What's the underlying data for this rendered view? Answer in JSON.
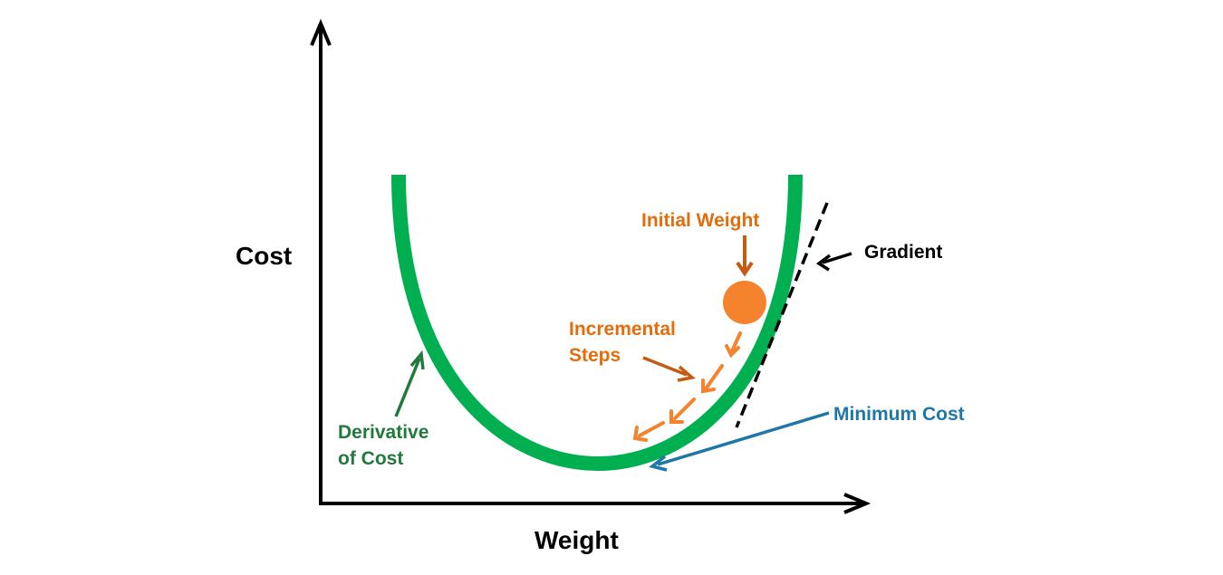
{
  "labels": {
    "y_axis": "Cost",
    "x_axis": "Weight",
    "initial_weight": "Initial Weight",
    "gradient": "Gradient",
    "incremental_steps_line1": "Incremental",
    "incremental_steps_line2": "Steps",
    "minimum_cost": "Minimum Cost",
    "derivative_line1": "Derivative",
    "derivative_line2": "of Cost"
  },
  "colors": {
    "curve": "#00b050",
    "derivative_label": "#217a3c",
    "initial_weight_label": "#e46c0a",
    "ball": "#f5822d",
    "steps_arrow": "#f5822d",
    "steps_label_arrow": "#c55a11",
    "minimum_cost": "#1f77a8",
    "gradient": "#000000",
    "axes": "#000000"
  },
  "icons": {
    "ball": "filled-circle",
    "axis_arrows": "open-arrowheads",
    "tangent": "dashed-line"
  }
}
